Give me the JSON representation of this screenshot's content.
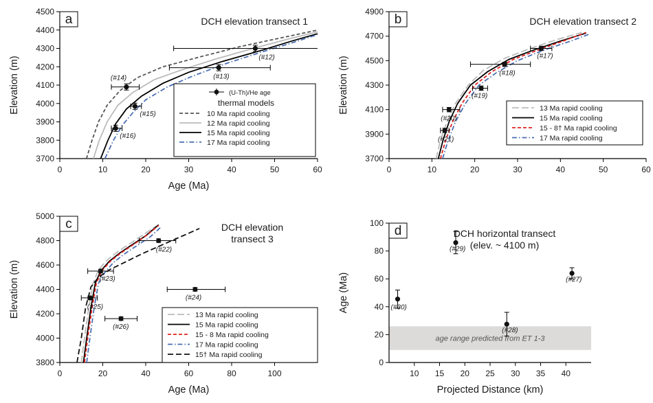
{
  "chart_data": [
    {
      "type": "scatter",
      "panel": "a",
      "title": "DCH elevation transect 1",
      "xlabel": "Age (Ma)",
      "ylabel": "Elevation (m)",
      "xlim": [
        0,
        60
      ],
      "ylim": [
        3700,
        4500
      ],
      "xticks": [
        0,
        10,
        20,
        30,
        40,
        50,
        60
      ],
      "yticks": [
        3700,
        3800,
        3900,
        4000,
        4100,
        4200,
        4300,
        4400,
        4500
      ],
      "points": [
        {
          "label": "(#14)",
          "x": 15.5,
          "y": 4090,
          "xerr": [
            12,
            18.5
          ],
          "yerr": 17
        },
        {
          "label": "(#12)",
          "x": 45.5,
          "y": 4300,
          "xerr": [
            26.5,
            60
          ],
          "yerr": 17
        },
        {
          "label": "(#13)",
          "x": 37,
          "y": 4195,
          "xerr": [
            25.5,
            49
          ],
          "yerr": 17
        },
        {
          "label": "(#15)",
          "x": 17.5,
          "y": 3985,
          "xerr": [
            16.5,
            19
          ],
          "yerr": 17
        },
        {
          "label": "(#16)",
          "x": 13,
          "y": 3865,
          "xerr": [
            12,
            14.5
          ],
          "yerr": 17
        }
      ],
      "legend_marker_label": "(U-Th)/He age",
      "legend_header": "thermal models",
      "legend_position": "bottom-right",
      "series": [
        {
          "name": "10 Ma rapid cooling",
          "color": "#555555",
          "dash": "5,3",
          "x": [
            6.2,
            7.5,
            9,
            11,
            14,
            18,
            24,
            32,
            42,
            52,
            60
          ],
          "y": [
            3700,
            3800,
            3900,
            3990,
            4070,
            4140,
            4200,
            4250,
            4310,
            4360,
            4400
          ]
        },
        {
          "name": "12 Ma rapid cooling",
          "color": "#bbbbbb",
          "dash": "",
          "x": [
            7.8,
            9.2,
            11,
            13.5,
            17,
            22,
            28,
            36,
            45,
            53,
            60
          ],
          "y": [
            3700,
            3800,
            3900,
            3990,
            4060,
            4130,
            4180,
            4240,
            4300,
            4350,
            4390
          ]
        },
        {
          "name": "15 Ma rapid cooling",
          "color": "#000000",
          "dash": "",
          "x": [
            9.5,
            11.2,
            13,
            15.5,
            19,
            24,
            30,
            38,
            47,
            54,
            60
          ],
          "y": [
            3700,
            3800,
            3890,
            3970,
            4040,
            4110,
            4170,
            4230,
            4290,
            4340,
            4380
          ]
        },
        {
          "name": "17 Ma rapid cooling",
          "color": "#4a6fb5",
          "dash": "7,3,1.5,3",
          "x": [
            10.5,
            12.5,
            14.5,
            17,
            20,
            25,
            31,
            39,
            47,
            54,
            60
          ],
          "y": [
            3700,
            3800,
            3880,
            3950,
            4020,
            4090,
            4150,
            4220,
            4280,
            4330,
            4375
          ]
        }
      ]
    },
    {
      "type": "scatter",
      "panel": "b",
      "title": "DCH elevation transect 2",
      "xlabel": "",
      "ylabel": "Elevation (m)",
      "xlim": [
        0,
        60
      ],
      "ylim": [
        3700,
        4900
      ],
      "xticks": [
        0,
        10,
        20,
        30,
        40,
        50,
        60
      ],
      "yticks": [
        3700,
        3900,
        4100,
        4300,
        4500,
        4700,
        4900
      ],
      "points": [
        {
          "label": "(#17)",
          "x": 35.5,
          "y": 4600,
          "xerr": [
            33,
            38
          ],
          "yerr": 18
        },
        {
          "label": "(#18)",
          "x": 27,
          "y": 4470,
          "xerr": [
            19,
            33
          ],
          "yerr": 18
        },
        {
          "label": "(#19)",
          "x": 21.5,
          "y": 4275,
          "xerr": [
            19.5,
            23
          ],
          "yerr": 18
        },
        {
          "label": "(#20)",
          "x": 14,
          "y": 4100,
          "xerr": [
            12.5,
            16.5
          ],
          "yerr": 18
        },
        {
          "label": "(#21)",
          "x": 13,
          "y": 3930,
          "xerr": [
            12,
            14
          ],
          "yerr": 18
        }
      ],
      "legend_position": "bottom-right",
      "series": [
        {
          "name": "13 Ma rapid cooling",
          "color": "#bbbbbb",
          "dash": "10,4",
          "x": [
            11,
            12,
            13.5,
            15.5,
            18.5,
            22,
            27,
            33,
            39,
            45
          ],
          "y": [
            3700,
            3850,
            4000,
            4150,
            4300,
            4420,
            4520,
            4600,
            4670,
            4730
          ]
        },
        {
          "name": "15 Ma rapid cooling",
          "color": "#000000",
          "dash": "",
          "x": [
            11.5,
            12.6,
            14,
            16,
            19,
            23,
            28,
            34,
            40,
            46
          ],
          "y": [
            3700,
            3850,
            4000,
            4150,
            4300,
            4410,
            4510,
            4590,
            4660,
            4725
          ]
        },
        {
          "name": "15 - 8† Ma rapid cooling",
          "color": "#e02020",
          "dash": "5,3",
          "x": [
            12,
            13.2,
            14.8,
            17,
            20,
            24,
            29,
            35,
            41,
            46
          ],
          "y": [
            3700,
            3850,
            4000,
            4150,
            4300,
            4410,
            4510,
            4590,
            4665,
            4730
          ]
        },
        {
          "name": "17 Ma rapid cooling",
          "color": "#4a6fb5",
          "dash": "7,3,1.5,3",
          "x": [
            12.5,
            13.8,
            15.5,
            17.8,
            21,
            25,
            30,
            36,
            42,
            47
          ],
          "y": [
            3700,
            3850,
            4000,
            4150,
            4300,
            4400,
            4500,
            4585,
            4655,
            4720
          ]
        }
      ]
    },
    {
      "type": "scatter",
      "panel": "c",
      "title": "DCH elevation transect 3",
      "title_lines": [
        "DCH elevation",
        "transect 3"
      ],
      "xlabel": "Age (Ma)",
      "ylabel": "Elevation (m)",
      "xlim": [
        0,
        120
      ],
      "ylim": [
        3800,
        5000
      ],
      "xticks": [
        0,
        20,
        40,
        60,
        80,
        100
      ],
      "yticks": [
        3800,
        4000,
        4200,
        4400,
        4600,
        4800,
        5000
      ],
      "points": [
        {
          "label": "(#22)",
          "x": 46,
          "y": 4800,
          "xerr": [
            37,
            54
          ],
          "yerr": 15
        },
        {
          "label": "(#23)",
          "x": 19,
          "y": 4550,
          "xerr": [
            13,
            25
          ],
          "yerr": 15
        },
        {
          "label": "(#24)",
          "x": 63,
          "y": 4400,
          "xerr": [
            50,
            77
          ],
          "yerr": 15
        },
        {
          "label": "(#25)",
          "x": 14,
          "y": 4330,
          "xerr": [
            10,
            17.5
          ],
          "yerr": 15
        },
        {
          "label": "(#26)",
          "x": 28.5,
          "y": 4160,
          "xerr": [
            21,
            36
          ],
          "yerr": 15
        }
      ],
      "legend_position": "bottom-right",
      "series": [
        {
          "name": "13 Ma rapid cooling",
          "color": "#bbbbbb",
          "dash": "10,4",
          "x": [
            10,
            11.5,
            13.5,
            15.5,
            18,
            22,
            27,
            33,
            39,
            45
          ],
          "y": [
            3800,
            4000,
            4250,
            4450,
            4560,
            4640,
            4710,
            4780,
            4850,
            4920
          ]
        },
        {
          "name": "15 Ma  rapid cooling",
          "color": "#000000",
          "dash": "",
          "x": [
            11,
            12.5,
            14.5,
            16.5,
            19,
            23,
            28,
            34,
            40,
            46
          ],
          "y": [
            3800,
            4000,
            4250,
            4450,
            4550,
            4630,
            4700,
            4770,
            4840,
            4930
          ]
        },
        {
          "name": "15 - 8 Ma rapid cooling",
          "color": "#e02020",
          "dash": "5,3",
          "x": [
            11.5,
            13,
            15,
            17,
            19.5,
            23.5,
            28.5,
            34.5,
            40.5,
            46
          ],
          "y": [
            3800,
            4000,
            4250,
            4450,
            4550,
            4630,
            4700,
            4770,
            4845,
            4925
          ]
        },
        {
          "name": "17 Ma rapid cooling",
          "color": "#4a6fb5",
          "dash": "7,3,1.5,3",
          "x": [
            12.5,
            14,
            16,
            18,
            21,
            25,
            30,
            36,
            42,
            47
          ],
          "y": [
            3800,
            4000,
            4250,
            4450,
            4540,
            4620,
            4690,
            4760,
            4830,
            4910
          ]
        },
        {
          "name": "15† Ma rapid cooling",
          "color": "#111111",
          "dash": "8,4",
          "x": [
            8,
            10,
            12,
            14.5,
            18,
            23,
            30,
            38,
            47,
            56,
            65
          ],
          "y": [
            3800,
            4000,
            4250,
            4420,
            4500,
            4560,
            4620,
            4690,
            4760,
            4830,
            4900
          ]
        }
      ]
    },
    {
      "type": "scatter",
      "panel": "d",
      "title": "DCH horizontal transect",
      "subtitle": "(elev. ~ 4100 m)",
      "xlabel": "Projected Distance (km)",
      "ylabel": "Age (Ma)",
      "xlim": [
        5,
        45
      ],
      "ylim": [
        0,
        100
      ],
      "xticks": [
        10,
        15,
        20,
        25,
        30,
        35,
        40
      ],
      "yticks": [
        0,
        20,
        40,
        60,
        80,
        100
      ],
      "points": [
        {
          "label": "(#30)",
          "x": 6.7,
          "y": 45.5,
          "yerr": [
            39,
            52
          ]
        },
        {
          "label": "(#29)",
          "x": 18.2,
          "y": 86,
          "yerr": [
            78,
            94
          ]
        },
        {
          "label": "(#28)",
          "x": 28.3,
          "y": 27.5,
          "yerr": [
            19,
            36
          ]
        },
        {
          "label": "(#27)",
          "x": 41.2,
          "y": 64,
          "yerr": [
            60,
            68
          ]
        }
      ],
      "band": {
        "y0": 9,
        "y1": 26,
        "color": "#dddbd9",
        "label": "age range predicted from ET 1-3"
      }
    }
  ]
}
